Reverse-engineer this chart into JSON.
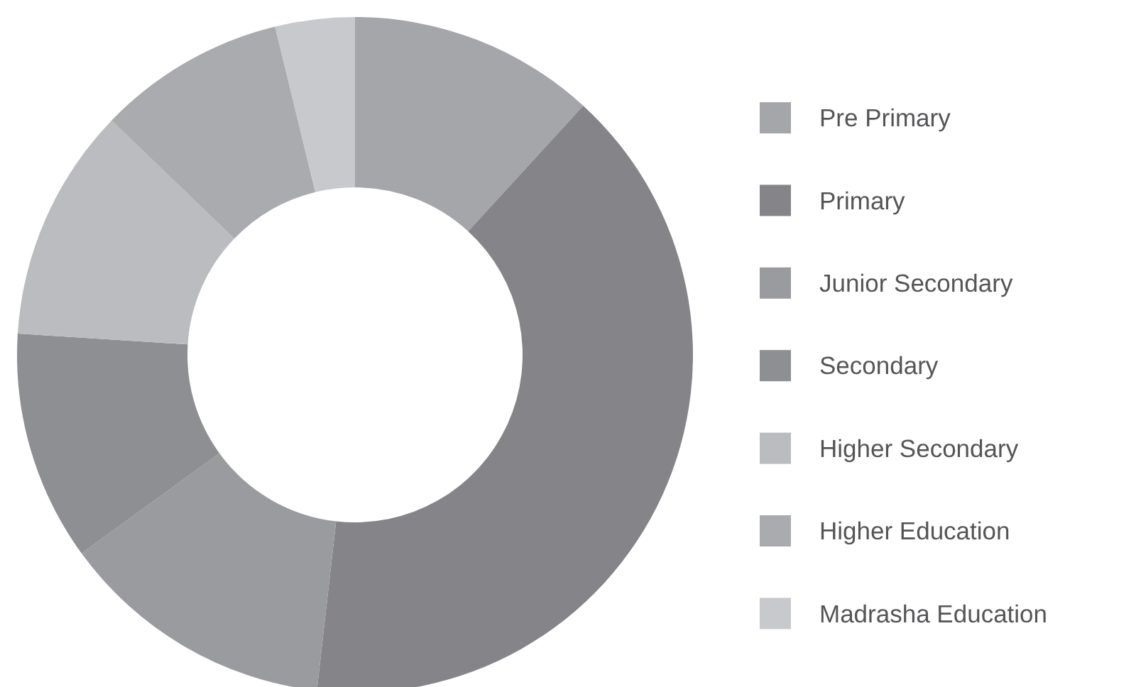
{
  "chart_data": {
    "type": "donut",
    "categories": [
      "Pre Primary",
      "Primary",
      "Junior Secondary",
      "Secondary",
      "Higher Secondary",
      "Higher Education",
      "Madrasha Education"
    ],
    "values": [
      11.8,
      40.0,
      13.2,
      11.0,
      11.2,
      9.0,
      3.8
    ],
    "colors": [
      "#a5a6a9",
      "#858589",
      "#9a9b9f",
      "#8e8f93",
      "#bbbcbf",
      "#aaabae",
      "#c8c9cc"
    ],
    "legend": "right"
  }
}
